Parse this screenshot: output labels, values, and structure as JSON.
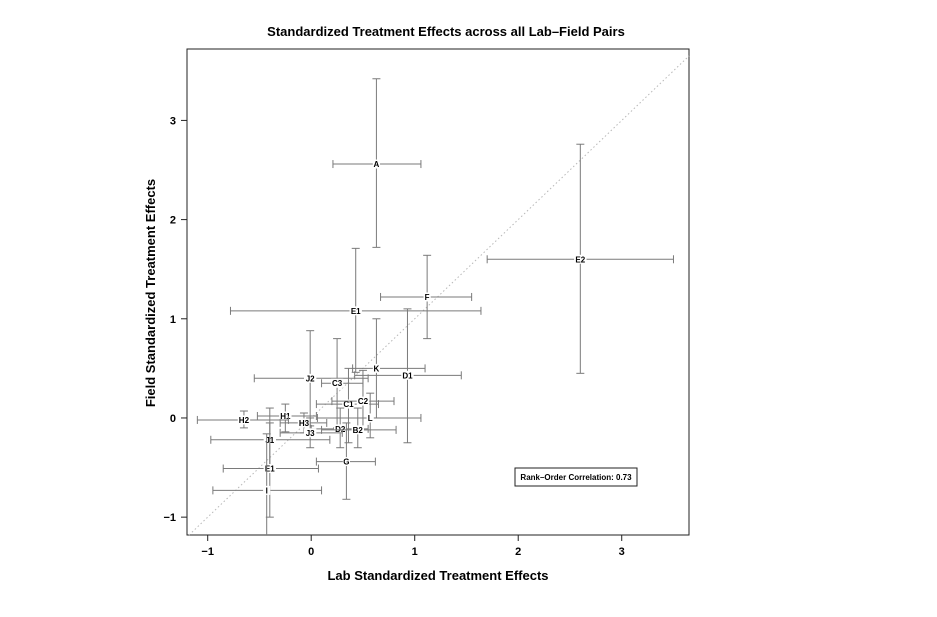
{
  "chart_data": {
    "type": "scatter",
    "title": "Standardized Treatment Effects across all Lab–Field Pairs",
    "xlabel": "Lab Standardized Treatment Effects",
    "ylabel": "Field Standardized Treatment Effects",
    "xlim": [
      -1.2,
      3.65
    ],
    "ylim": [
      -1.18,
      3.72
    ],
    "xticks": [
      -1,
      0,
      1,
      2,
      3
    ],
    "yticks": [
      -1,
      0,
      1,
      2,
      3
    ],
    "xtick_labels": [
      "−1",
      "0",
      "1",
      "2",
      "3"
    ],
    "ytick_labels": [
      "−1",
      "0",
      "1",
      "2",
      "3"
    ],
    "reference_line": "y = x (dotted)",
    "grid": false,
    "annotation": "Rank–Order Correlation: 0.73",
    "annotation_position": "bottom-right",
    "line_color": "#7a7a7a",
    "points": [
      {
        "label": "A",
        "x": 0.63,
        "y": 2.56,
        "x_lo": 0.21,
        "x_hi": 1.06,
        "y_lo": 1.72,
        "y_hi": 3.42
      },
      {
        "label": "E2",
        "x": 2.6,
        "y": 1.6,
        "x_lo": 1.7,
        "x_hi": 3.5,
        "y_lo": 0.45,
        "y_hi": 2.76
      },
      {
        "label": "F",
        "x": 1.12,
        "y": 1.22,
        "x_lo": 0.67,
        "x_hi": 1.55,
        "y_lo": 0.8,
        "y_hi": 1.64
      },
      {
        "label": "E1",
        "x": 0.43,
        "y": 1.08,
        "x_lo": -0.78,
        "x_hi": 1.64,
        "y_lo": 0.46,
        "y_hi": 1.71
      },
      {
        "label": "K",
        "x": 0.63,
        "y": 0.5,
        "x_lo": 0.4,
        "x_hi": 1.1,
        "y_lo": 0.0,
        "y_hi": 1.0
      },
      {
        "label": "D1",
        "x": 0.93,
        "y": 0.43,
        "x_lo": 0.42,
        "x_hi": 1.45,
        "y_lo": -0.25,
        "y_hi": 1.1
      },
      {
        "label": "J2",
        "x": -0.01,
        "y": 0.4,
        "x_lo": -0.55,
        "x_hi": 0.55,
        "y_lo": -0.08,
        "y_hi": 0.88
      },
      {
        "label": "C3",
        "x": 0.25,
        "y": 0.35,
        "x_lo": 0.1,
        "x_hi": 0.5,
        "y_lo": -0.1,
        "y_hi": 0.8
      },
      {
        "label": "C1",
        "x": 0.36,
        "y": 0.14,
        "x_lo": 0.05,
        "x_hi": 0.65,
        "y_lo": -0.25,
        "y_hi": 0.5
      },
      {
        "label": "C2",
        "x": 0.5,
        "y": 0.17,
        "x_lo": 0.2,
        "x_hi": 0.8,
        "y_lo": -0.12,
        "y_hi": 0.48
      },
      {
        "label": "H1",
        "x": -0.25,
        "y": 0.02,
        "x_lo": -0.52,
        "x_hi": 0.05,
        "y_lo": -0.14,
        "y_hi": 0.14
      },
      {
        "label": "H2",
        "x": -0.65,
        "y": -0.02,
        "x_lo": -1.1,
        "x_hi": -0.22,
        "y_lo": -0.1,
        "y_hi": 0.07
      },
      {
        "label": "L",
        "x": 0.57,
        "y": 0.0,
        "x_lo": 0.06,
        "x_hi": 1.06,
        "y_lo": -0.2,
        "y_hi": 0.25
      },
      {
        "label": "H3",
        "x": -0.07,
        "y": -0.05,
        "x_lo": -0.3,
        "x_hi": 0.15,
        "y_lo": -0.15,
        "y_hi": 0.05
      },
      {
        "label": "D2",
        "x": 0.28,
        "y": -0.11,
        "x_lo": 0.0,
        "x_hi": 0.55,
        "y_lo": -0.3,
        "y_hi": 0.1
      },
      {
        "label": "J3",
        "x": -0.01,
        "y": -0.15,
        "x_lo": -0.3,
        "x_hi": 0.3,
        "y_lo": -0.3,
        "y_hi": 0.0
      },
      {
        "label": "B2",
        "x": 0.45,
        "y": -0.12,
        "x_lo": 0.1,
        "x_hi": 0.82,
        "y_lo": -0.3,
        "y_hi": 0.1
      },
      {
        "label": "J1",
        "x": -0.4,
        "y": -0.22,
        "x_lo": -0.97,
        "x_hi": 0.18,
        "y_lo": -0.5,
        "y_hi": 0.1
      },
      {
        "label": "G",
        "x": 0.34,
        "y": -0.44,
        "x_lo": 0.05,
        "x_hi": 0.62,
        "y_lo": -0.82,
        "y_hi": -0.05
      },
      {
        "label": "E1",
        "x": -0.4,
        "y": -0.51,
        "x_lo": -0.85,
        "x_hi": 0.07,
        "y_lo": -1.0,
        "y_hi": -0.05
      },
      {
        "label": "I",
        "x": -0.43,
        "y": -0.73,
        "x_lo": -0.95,
        "x_hi": 0.1,
        "y_lo": -1.35,
        "y_hi": -0.16
      }
    ]
  }
}
